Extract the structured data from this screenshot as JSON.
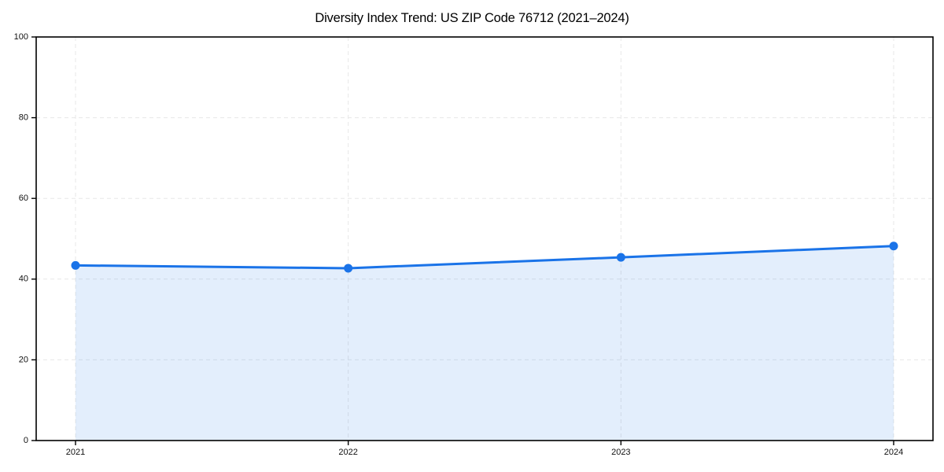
{
  "chart_data": {
    "type": "area",
    "title": "Diversity Index Trend: US ZIP Code 76712 (2021–2024)",
    "series_name": "Diversity Index",
    "categories": [
      "2021",
      "2022",
      "2023",
      "2024"
    ],
    "values": [
      43.4,
      42.7,
      45.4,
      48.2
    ],
    "xlabel": "",
    "ylabel": "",
    "ylim": [
      0,
      100
    ],
    "yticks": [
      0,
      20,
      40,
      60,
      80,
      100
    ],
    "grid": true,
    "grid_style": "dashed",
    "legend_position": "none",
    "colors": {
      "line": "#1a73e8",
      "marker": "#1a73e8",
      "fill": "rgba(26,115,232,0.12)",
      "grid": "#e7e7e7",
      "spine": "#000000",
      "tick_label": "#111111",
      "background": "#ffffff"
    }
  }
}
